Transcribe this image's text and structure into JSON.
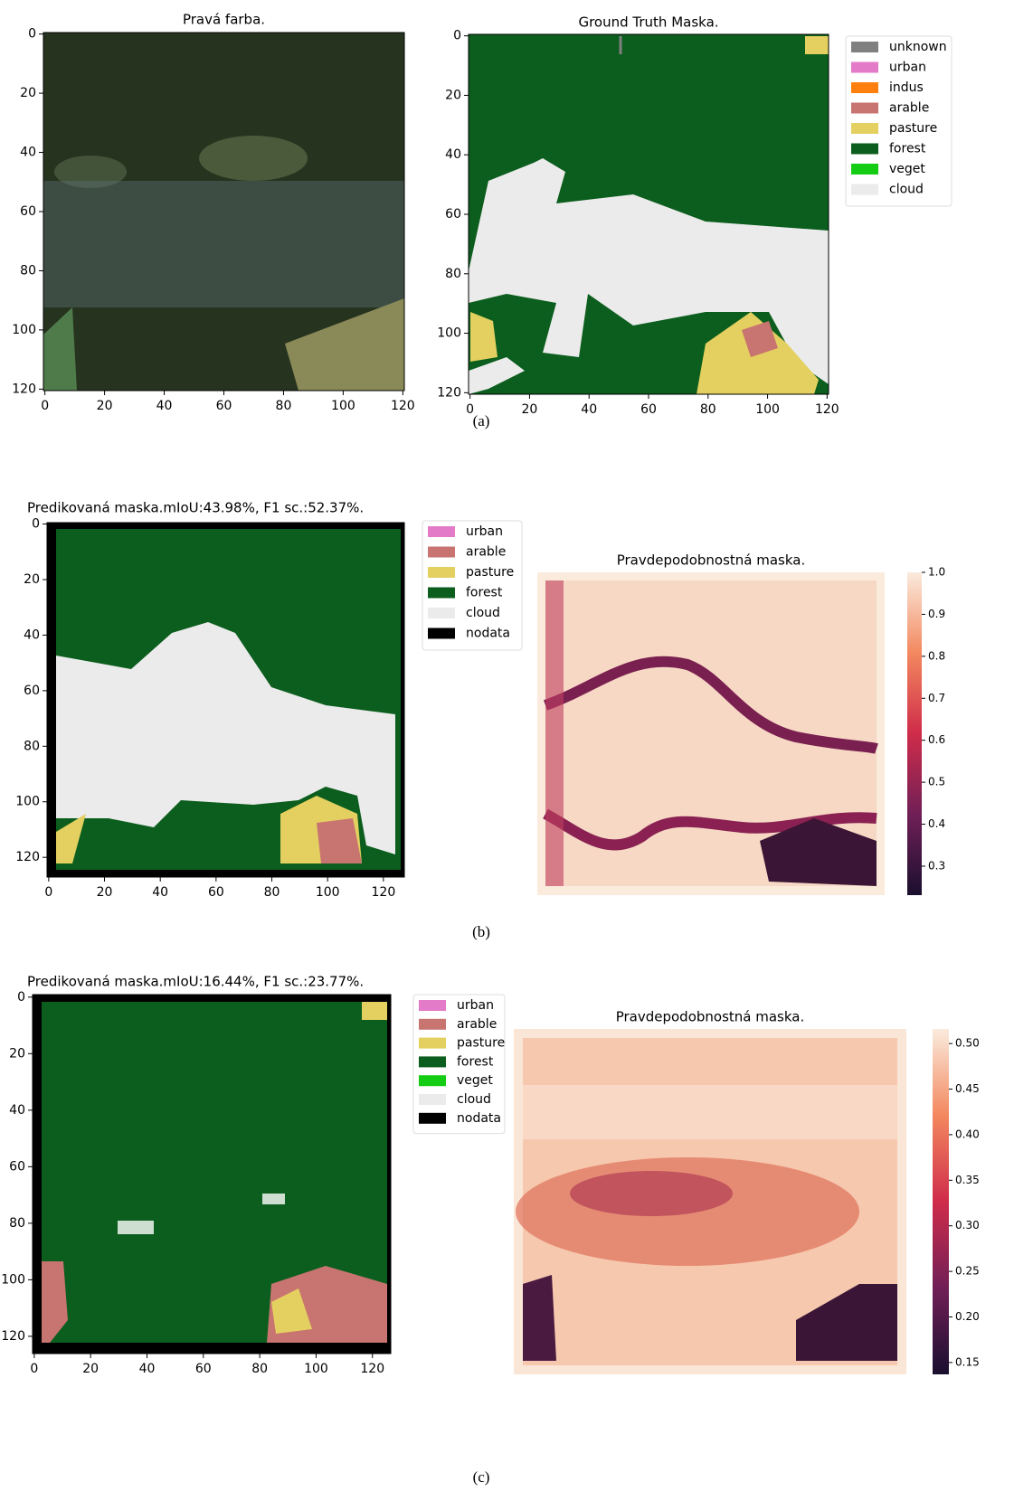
{
  "figures": [
    {
      "caption": "(a)",
      "panels": [
        {
          "title": "Pravá farba.",
          "xlim": [
            -0.5,
            120.5
          ],
          "ylim": [
            -0.5,
            120.5
          ],
          "xticks": [
            0,
            20,
            40,
            60,
            80,
            100,
            120
          ],
          "yticks": [
            0,
            20,
            40,
            60,
            80,
            100,
            120
          ]
        },
        {
          "title": "Ground Truth Maska.",
          "xlim": [
            -0.5,
            120.5
          ],
          "ylim": [
            -0.5,
            120.5
          ],
          "xticks": [
            0,
            20,
            40,
            60,
            80,
            100,
            120
          ],
          "yticks": [
            0,
            20,
            40,
            60,
            80,
            100,
            120
          ],
          "legend": [
            {
              "label": "unknown",
              "color": "#808080"
            },
            {
              "label": "urban",
              "color": "#e37bc9"
            },
            {
              "label": "indus",
              "color": "#ff7f0e"
            },
            {
              "label": "arable",
              "color": "#c87470"
            },
            {
              "label": "pasture",
              "color": "#e4d060"
            },
            {
              "label": "forest",
              "color": "#0b5e1d"
            },
            {
              "label": "veget",
              "color": "#14cc14"
            },
            {
              "label": "cloud",
              "color": "#ebebeb"
            }
          ]
        }
      ]
    },
    {
      "caption": "(b)",
      "panels": [
        {
          "title": "Predikovaná maska.mIoU:43.98%, F1 sc.:52.37%.",
          "xlim": [
            -0.6,
            127.5
          ],
          "ylim": [
            -0.5,
            127.1
          ],
          "xticks": [
            0,
            20,
            40,
            60,
            80,
            100,
            120
          ],
          "yticks": [
            0,
            20,
            40,
            60,
            80,
            100,
            120
          ],
          "legend": [
            {
              "label": "urban",
              "color": "#e37bc9"
            },
            {
              "label": "arable",
              "color": "#c87470"
            },
            {
              "label": "pasture",
              "color": "#e4d060"
            },
            {
              "label": "forest",
              "color": "#0b5e1d"
            },
            {
              "label": "cloud",
              "color": "#ebebeb"
            },
            {
              "label": "nodata",
              "color": "#000000"
            }
          ]
        },
        {
          "title": "Pravdepodobnostná maska.",
          "clim": [
            0.231,
            1.0
          ],
          "cticks": [
            {
              "value": 1.0,
              "label": "1.0"
            },
            0.9,
            0.8,
            0.7,
            0.6,
            0.5,
            0.4,
            0.3
          ]
        }
      ]
    },
    {
      "caption": "(c)",
      "panels": [
        {
          "title": "Predikovaná maska.mIoU:16.44%, F1 sc.:23.77%.",
          "xlim": [
            -0.6,
            126.5
          ],
          "ylim": [
            -0.9,
            126.1
          ],
          "xticks": [
            0,
            20,
            40,
            60,
            80,
            100,
            120
          ],
          "yticks": [
            0,
            20,
            40,
            60,
            80,
            100,
            120
          ],
          "legend": [
            {
              "label": "urban",
              "color": "#e37bc9"
            },
            {
              "label": "arable",
              "color": "#c87470"
            },
            {
              "label": "pasture",
              "color": "#e4d060"
            },
            {
              "label": "forest",
              "color": "#0b5e1d"
            },
            {
              "label": "veget",
              "color": "#14cc14"
            },
            {
              "label": "cloud",
              "color": "#ebebeb"
            },
            {
              "label": "nodata",
              "color": "#000000"
            }
          ]
        },
        {
          "title": "Pravdepodobnostná maska.",
          "clim": [
            0.137,
            0.516
          ],
          "cticks": [
            {
              "value": 0.5,
              "label": "0.50"
            },
            0.45,
            {
              "value": 0.4,
              "label": "0.40"
            },
            0.35,
            {
              "value": 0.3,
              "label": "0.30"
            },
            0.25,
            {
              "value": 0.2,
              "label": "0.20"
            },
            0.15
          ]
        }
      ]
    }
  ]
}
